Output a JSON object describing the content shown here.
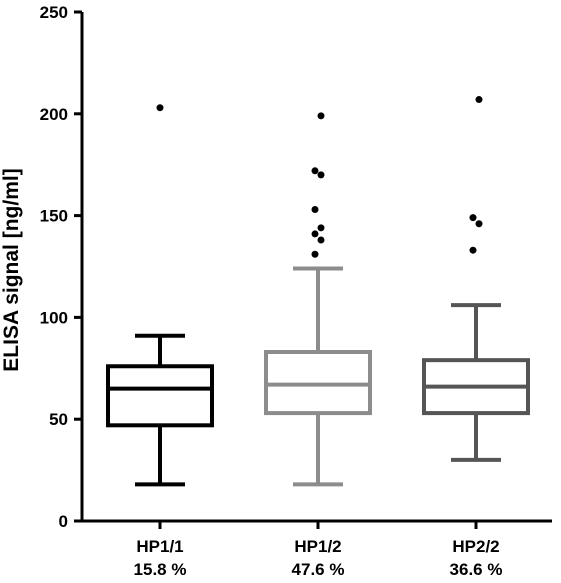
{
  "chart_data": {
    "type": "boxplot",
    "title": "",
    "xlabel": "",
    "ylabel": "ELISA signal [ng/ml]",
    "ylim": [
      0,
      250
    ],
    "yticks": [
      0,
      50,
      100,
      150,
      200,
      250
    ],
    "grid": false,
    "legend": "none",
    "categories": [
      {
        "label": "HP1/1",
        "percent": "15.8  %",
        "color": "#000000",
        "whisker_low": 18,
        "q1": 47,
        "median": 65,
        "q3": 76,
        "whisker_high": 91,
        "outliers": [
          203
        ]
      },
      {
        "label": "HP1/2",
        "percent": "47.6 %",
        "color": "#8c8c8c",
        "whisker_low": 18,
        "q1": 53,
        "median": 67,
        "q3": 83,
        "whisker_high": 124,
        "outliers": [
          131,
          138,
          141,
          144,
          153,
          170,
          172,
          199
        ]
      },
      {
        "label": "HP2/2",
        "percent": "36.6  %",
        "color": "#555555",
        "whisker_low": 30,
        "q1": 53,
        "median": 66,
        "q3": 79,
        "whisker_high": 106,
        "outliers": [
          133,
          146,
          149,
          207
        ]
      }
    ]
  }
}
